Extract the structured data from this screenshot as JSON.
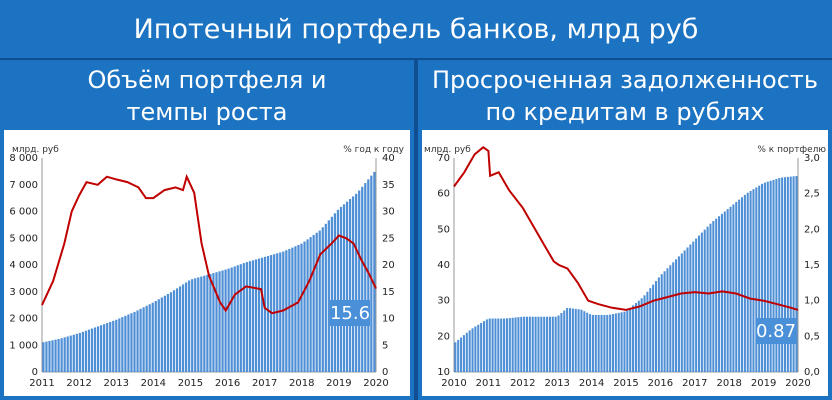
{
  "title": "Ипотечный портфель банков, млрд руб",
  "left": {
    "heading_line1": "Объём портфеля и",
    "heading_line2": "темпы роста"
  },
  "right": {
    "heading_line1": "Просроченная задолженность",
    "heading_line2": "по кредитам в рублях"
  },
  "colors": {
    "bars": "#4f8fd6",
    "line": "#c00000",
    "header": "#1c73c2",
    "callout": "#4a90d9"
  },
  "chart_data": [
    {
      "type": "bar",
      "left_unit": "млрд. руб",
      "right_unit": "% год к году",
      "x_ticks": [
        "2011",
        "2012",
        "2013",
        "2014",
        "2015",
        "2016",
        "2017",
        "2018",
        "2019",
        "2020"
      ],
      "y_left_ticks": [
        "0",
        "1 000",
        "2 000",
        "3 000",
        "4 000",
        "5 000",
        "6 000",
        "7 000",
        "8 000"
      ],
      "y_right_ticks": [
        "0",
        "5",
        "10",
        "15",
        "20",
        "25",
        "30",
        "35",
        "40"
      ],
      "ylim_left": [
        0,
        8000
      ],
      "ylim_right": [
        0,
        40
      ],
      "xlim": [
        2011,
        2020
      ],
      "callout": "15.6",
      "series": [
        {
          "type": "bar",
          "axis": "left",
          "points": [
            [
              2011.0,
              1100
            ],
            [
              2011.5,
              1250
            ],
            [
              2012.0,
              1450
            ],
            [
              2012.5,
              1700
            ],
            [
              2013.0,
              1950
            ],
            [
              2013.5,
              2250
            ],
            [
              2014.0,
              2600
            ],
            [
              2014.5,
              3000
            ],
            [
              2015.0,
              3450
            ],
            [
              2015.5,
              3650
            ],
            [
              2016.0,
              3850
            ],
            [
              2016.5,
              4100
            ],
            [
              2017.0,
              4300
            ],
            [
              2017.5,
              4500
            ],
            [
              2018.0,
              4800
            ],
            [
              2018.5,
              5300
            ],
            [
              2019.0,
              6100
            ],
            [
              2019.5,
              6700
            ],
            [
              2020.0,
              7550
            ]
          ]
        },
        {
          "type": "line",
          "axis": "right",
          "points": [
            [
              2011.0,
              12.5
            ],
            [
              2011.3,
              17
            ],
            [
              2011.6,
              24
            ],
            [
              2011.8,
              30
            ],
            [
              2012.0,
              33
            ],
            [
              2012.2,
              35.5
            ],
            [
              2012.5,
              35
            ],
            [
              2012.75,
              36.5
            ],
            [
              2013.0,
              36
            ],
            [
              2013.3,
              35.5
            ],
            [
              2013.6,
              34.5
            ],
            [
              2013.8,
              32.5
            ],
            [
              2014.0,
              32.5
            ],
            [
              2014.3,
              34
            ],
            [
              2014.6,
              34.5
            ],
            [
              2014.8,
              34
            ],
            [
              2014.9,
              36.5
            ],
            [
              2015.1,
              33.5
            ],
            [
              2015.3,
              24
            ],
            [
              2015.5,
              18
            ],
            [
              2015.8,
              13
            ],
            [
              2015.95,
              11.5
            ],
            [
              2016.2,
              14.5
            ],
            [
              2016.5,
              16
            ],
            [
              2016.9,
              15.5
            ],
            [
              2017.0,
              12
            ],
            [
              2017.2,
              11
            ],
            [
              2017.5,
              11.5
            ],
            [
              2017.9,
              13
            ],
            [
              2018.2,
              17
            ],
            [
              2018.5,
              22
            ],
            [
              2018.8,
              24
            ],
            [
              2019.0,
              25.5
            ],
            [
              2019.2,
              25
            ],
            [
              2019.4,
              24
            ],
            [
              2019.6,
              21
            ],
            [
              2019.8,
              18.5
            ],
            [
              2020.0,
              15.6
            ]
          ]
        }
      ]
    },
    {
      "type": "bar",
      "left_unit": "млрд. руб",
      "right_unit": "% к портфелю",
      "x_ticks": [
        "2010",
        "2011",
        "2012",
        "2013",
        "2014",
        "2015",
        "2016",
        "2017",
        "2018",
        "2019",
        "2020"
      ],
      "y_left_ticks": [
        "10",
        "20",
        "30",
        "40",
        "50",
        "60",
        "70"
      ],
      "y_right_ticks": [
        "0,0",
        "0,5",
        "1,0",
        "1,5",
        "2,0",
        "2,5",
        "3,0"
      ],
      "ylim_left": [
        10,
        70
      ],
      "ylim_right": [
        0,
        3
      ],
      "xlim": [
        2010,
        2020
      ],
      "callout": "0.87",
      "series": [
        {
          "type": "bar",
          "axis": "left",
          "points": [
            [
              2010.0,
              18
            ],
            [
              2010.5,
              22
            ],
            [
              2011.0,
              25
            ],
            [
              2011.5,
              25
            ],
            [
              2012.0,
              25.5
            ],
            [
              2012.5,
              25.5
            ],
            [
              2013.0,
              25.5
            ],
            [
              2013.3,
              28
            ],
            [
              2013.7,
              27.5
            ],
            [
              2014.0,
              26
            ],
            [
              2014.5,
              26
            ],
            [
              2015.0,
              27
            ],
            [
              2015.5,
              31
            ],
            [
              2016.0,
              37
            ],
            [
              2016.5,
              42
            ],
            [
              2017.0,
              47
            ],
            [
              2017.5,
              52
            ],
            [
              2018.0,
              56
            ],
            [
              2018.5,
              60
            ],
            [
              2019.0,
              63
            ],
            [
              2019.5,
              64.5
            ],
            [
              2020.0,
              65
            ]
          ]
        },
        {
          "type": "line",
          "axis": "right",
          "points": [
            [
              2010.0,
              2.6
            ],
            [
              2010.3,
              2.8
            ],
            [
              2010.6,
              3.05
            ],
            [
              2010.85,
              3.15
            ],
            [
              2011.0,
              3.1
            ],
            [
              2011.05,
              2.75
            ],
            [
              2011.3,
              2.8
            ],
            [
              2011.6,
              2.55
            ],
            [
              2012.0,
              2.3
            ],
            [
              2012.3,
              2.05
            ],
            [
              2012.6,
              1.8
            ],
            [
              2012.9,
              1.55
            ],
            [
              2013.05,
              1.5
            ],
            [
              2013.3,
              1.45
            ],
            [
              2013.6,
              1.25
            ],
            [
              2013.9,
              1.0
            ],
            [
              2014.2,
              0.95
            ],
            [
              2014.6,
              0.9
            ],
            [
              2015.0,
              0.87
            ],
            [
              2015.4,
              0.92
            ],
            [
              2015.8,
              1.0
            ],
            [
              2016.2,
              1.05
            ],
            [
              2016.6,
              1.1
            ],
            [
              2017.0,
              1.12
            ],
            [
              2017.4,
              1.1
            ],
            [
              2017.8,
              1.13
            ],
            [
              2018.2,
              1.1
            ],
            [
              2018.6,
              1.03
            ],
            [
              2019.0,
              1.0
            ],
            [
              2019.4,
              0.95
            ],
            [
              2019.8,
              0.9
            ],
            [
              2020.0,
              0.87
            ]
          ]
        }
      ]
    }
  ]
}
